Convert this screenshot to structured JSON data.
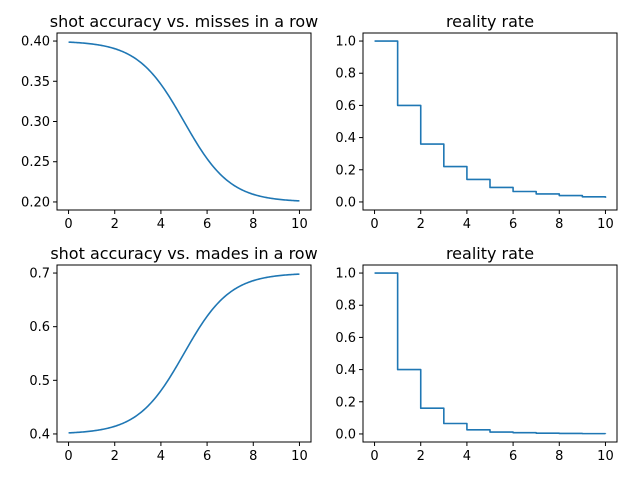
{
  "figure": {
    "line_color": "#1f77b4"
  },
  "chart_data": [
    {
      "id": "misses",
      "type": "line",
      "title": "shot accuracy vs. misses in a row",
      "xlim": [
        -0.5,
        10.5
      ],
      "ylim": [
        0.19,
        0.41
      ],
      "xticks": [
        0,
        2,
        4,
        6,
        8,
        10
      ],
      "yticks": [
        0.2,
        0.25,
        0.3,
        0.35,
        0.4
      ],
      "ytick_labels": [
        "0.20",
        "0.25",
        "0.30",
        "0.35",
        "0.40"
      ],
      "curve": {
        "kind": "logistic",
        "x_range": [
          0,
          10
        ],
        "start": 0.4,
        "end": 0.2,
        "midpoint": 5,
        "steepness": 1
      },
      "series": [
        {
          "x": [
            0,
            1,
            2,
            3,
            4,
            5,
            6,
            7,
            8,
            9,
            10
          ],
          "y": [
            0.399,
            0.397,
            0.391,
            0.376,
            0.346,
            0.3,
            0.254,
            0.224,
            0.209,
            0.203,
            0.201
          ]
        }
      ]
    },
    {
      "id": "reality1",
      "type": "line",
      "title": "reality rate",
      "xlim": [
        -0.5,
        10.5
      ],
      "ylim": [
        -0.05,
        1.05
      ],
      "xticks": [
        0,
        2,
        4,
        6,
        8,
        10
      ],
      "yticks": [
        0.0,
        0.2,
        0.4,
        0.6,
        0.8,
        1.0
      ],
      "ytick_labels": [
        "0.0",
        "0.2",
        "0.4",
        "0.6",
        "0.8",
        "1.0"
      ],
      "step": true,
      "series": [
        {
          "x": [
            0,
            1,
            2,
            3,
            4,
            5,
            6,
            7,
            8,
            9,
            10
          ],
          "y": [
            1.0,
            0.6,
            0.36,
            0.22,
            0.14,
            0.09,
            0.065,
            0.05,
            0.04,
            0.032,
            0.025
          ]
        }
      ]
    },
    {
      "id": "mades",
      "type": "line",
      "title": "shot accuracy vs. mades in a row",
      "xlim": [
        -0.5,
        10.5
      ],
      "ylim": [
        0.385,
        0.715
      ],
      "xticks": [
        0,
        2,
        4,
        6,
        8,
        10
      ],
      "yticks": [
        0.4,
        0.5,
        0.6,
        0.7
      ],
      "ytick_labels": [
        "0.4",
        "0.5",
        "0.6",
        "0.7"
      ],
      "curve": {
        "kind": "logistic",
        "x_range": [
          0,
          10
        ],
        "start": 0.4,
        "end": 0.7,
        "midpoint": 5,
        "steepness": 1
      },
      "series": [
        {
          "x": [
            0,
            1,
            2,
            3,
            4,
            5,
            6,
            7,
            8,
            9,
            10
          ],
          "y": [
            0.402,
            0.405,
            0.414,
            0.436,
            0.481,
            0.55,
            0.619,
            0.664,
            0.686,
            0.695,
            0.698
          ]
        }
      ]
    },
    {
      "id": "reality2",
      "type": "line",
      "title": "reality rate",
      "xlim": [
        -0.5,
        10.5
      ],
      "ylim": [
        -0.05,
        1.05
      ],
      "xticks": [
        0,
        2,
        4,
        6,
        8,
        10
      ],
      "yticks": [
        0.0,
        0.2,
        0.4,
        0.6,
        0.8,
        1.0
      ],
      "ytick_labels": [
        "0.0",
        "0.2",
        "0.4",
        "0.6",
        "0.8",
        "1.0"
      ],
      "step": true,
      "series": [
        {
          "x": [
            0,
            1,
            2,
            3,
            4,
            5,
            6,
            7,
            8,
            9,
            10
          ],
          "y": [
            1.0,
            0.4,
            0.16,
            0.065,
            0.026,
            0.012,
            0.008,
            0.005,
            0.003,
            0.002,
            0.001
          ]
        }
      ]
    }
  ]
}
